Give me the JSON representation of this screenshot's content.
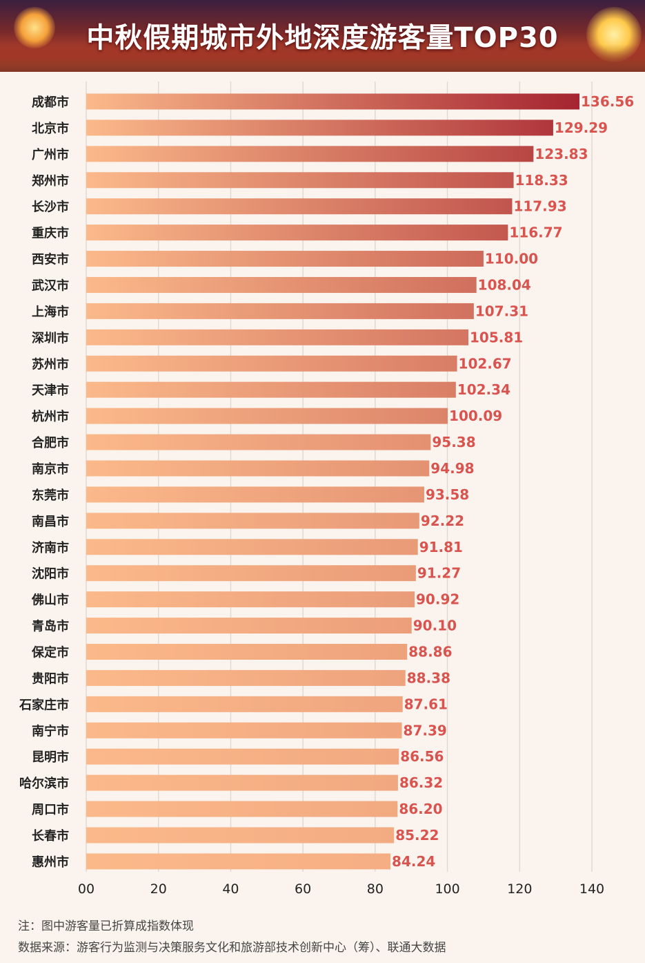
{
  "chart_data": {
    "type": "bar",
    "orientation": "horizontal",
    "title": "中秋假期城市外地深度游客量TOP30",
    "categories": [
      "成都市",
      "北京市",
      "广州市",
      "郑州市",
      "长沙市",
      "重庆市",
      "西安市",
      "武汉市",
      "上海市",
      "深圳市",
      "苏州市",
      "天津市",
      "杭州市",
      "合肥市",
      "南京市",
      "东莞市",
      "南昌市",
      "济南市",
      "沈阳市",
      "佛山市",
      "青岛市",
      "保定市",
      "贵阳市",
      "石家庄市",
      "南宁市",
      "昆明市",
      "哈尔滨市",
      "周口市",
      "长春市",
      "惠州市"
    ],
    "values": [
      136.56,
      129.29,
      123.83,
      118.33,
      117.93,
      116.77,
      110.0,
      108.04,
      107.31,
      105.81,
      102.67,
      102.34,
      100.09,
      95.38,
      94.98,
      93.58,
      92.22,
      91.81,
      91.27,
      90.92,
      90.1,
      88.86,
      88.38,
      87.61,
      87.39,
      86.56,
      86.32,
      86.2,
      85.22,
      84.24
    ],
    "value_labels": [
      "136.56",
      "129.29",
      "123.83",
      "118.33",
      "117.93",
      "116.77",
      "110.00",
      "108.04",
      "107.31",
      "105.81",
      "102.67",
      "102.34",
      "100.09",
      "95.38",
      "94.98",
      "93.58",
      "92.22",
      "91.81",
      "91.27",
      "90.92",
      "90.10",
      "88.86",
      "88.38",
      "87.61",
      "87.39",
      "86.56",
      "86.32",
      "86.20",
      "85.22",
      "84.24"
    ],
    "xlim": [
      0,
      140
    ],
    "xticks": [
      "00",
      "20",
      "40",
      "60",
      "80",
      "100",
      "120",
      "140"
    ],
    "grid": true,
    "colors": {
      "bar_start": "#fbb98a",
      "bar_end_high": "#a52430",
      "value_label": "#d9534f",
      "grid": "#e2d9d0"
    }
  },
  "notes": {
    "line1": "注：图中游客量已折算成指数体现",
    "line2": "数据来源：游客行为监测与决策服务文化和旅游部技术创新中心（筹）、联通大数据"
  }
}
